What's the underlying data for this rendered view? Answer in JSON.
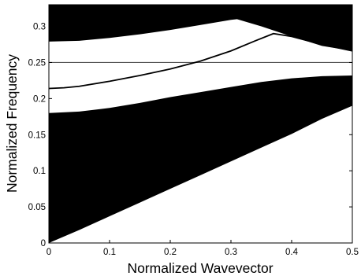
{
  "chart_data": {
    "type": "area",
    "title": "",
    "xlabel": "Normalized Wavevector",
    "ylabel": "Normalized Frequency",
    "xlim": [
      0,
      0.5
    ],
    "ylim": [
      0,
      0.33
    ],
    "xticks": [
      "0",
      "0.1",
      "0.2",
      "0.3",
      "0.4",
      "0.5"
    ],
    "yticks": [
      "0",
      "0.05",
      "0.1",
      "0.15",
      "0.2",
      "0.25",
      "0.3"
    ],
    "grid": false,
    "legend": "none",
    "fill_color": "#000000",
    "line_color": "#000000",
    "regions": {
      "lower_band": {
        "upper_x": [
          0,
          0.05,
          0.1,
          0.15,
          0.2,
          0.25,
          0.3,
          0.35,
          0.4,
          0.45,
          0.5
        ],
        "upper_y": [
          0.18,
          0.182,
          0.187,
          0.194,
          0.202,
          0.209,
          0.216,
          0.223,
          0.228,
          0.231,
          0.232
        ],
        "lower_x": [
          0,
          0.05,
          0.1,
          0.15,
          0.2,
          0.25,
          0.3,
          0.35,
          0.4,
          0.45,
          0.5
        ],
        "lower_y": [
          0,
          0.018,
          0.037,
          0.056,
          0.075,
          0.094,
          0.113,
          0.132,
          0.151,
          0.172,
          0.19
        ]
      },
      "upper_band": {
        "lower_x": [
          0,
          0.05,
          0.1,
          0.15,
          0.2,
          0.25,
          0.3,
          0.31,
          0.35,
          0.4,
          0.45,
          0.5
        ],
        "lower_y": [
          0.279,
          0.28,
          0.284,
          0.289,
          0.295,
          0.302,
          0.309,
          0.31,
          0.3,
          0.286,
          0.273,
          0.266
        ],
        "upper_y": 0.33
      }
    },
    "series": [
      {
        "x": [
          0,
          0.025,
          0.05,
          0.1,
          0.15,
          0.2,
          0.25,
          0.3,
          0.34,
          0.37,
          0.4,
          0.45,
          0.5
        ],
        "y": [
          0.214,
          0.215,
          0.217,
          0.224,
          0.232,
          0.241,
          0.252,
          0.266,
          0.28,
          0.29,
          0.286,
          0.275,
          0.266
        ]
      }
    ],
    "hlines": [
      0.25
    ]
  }
}
